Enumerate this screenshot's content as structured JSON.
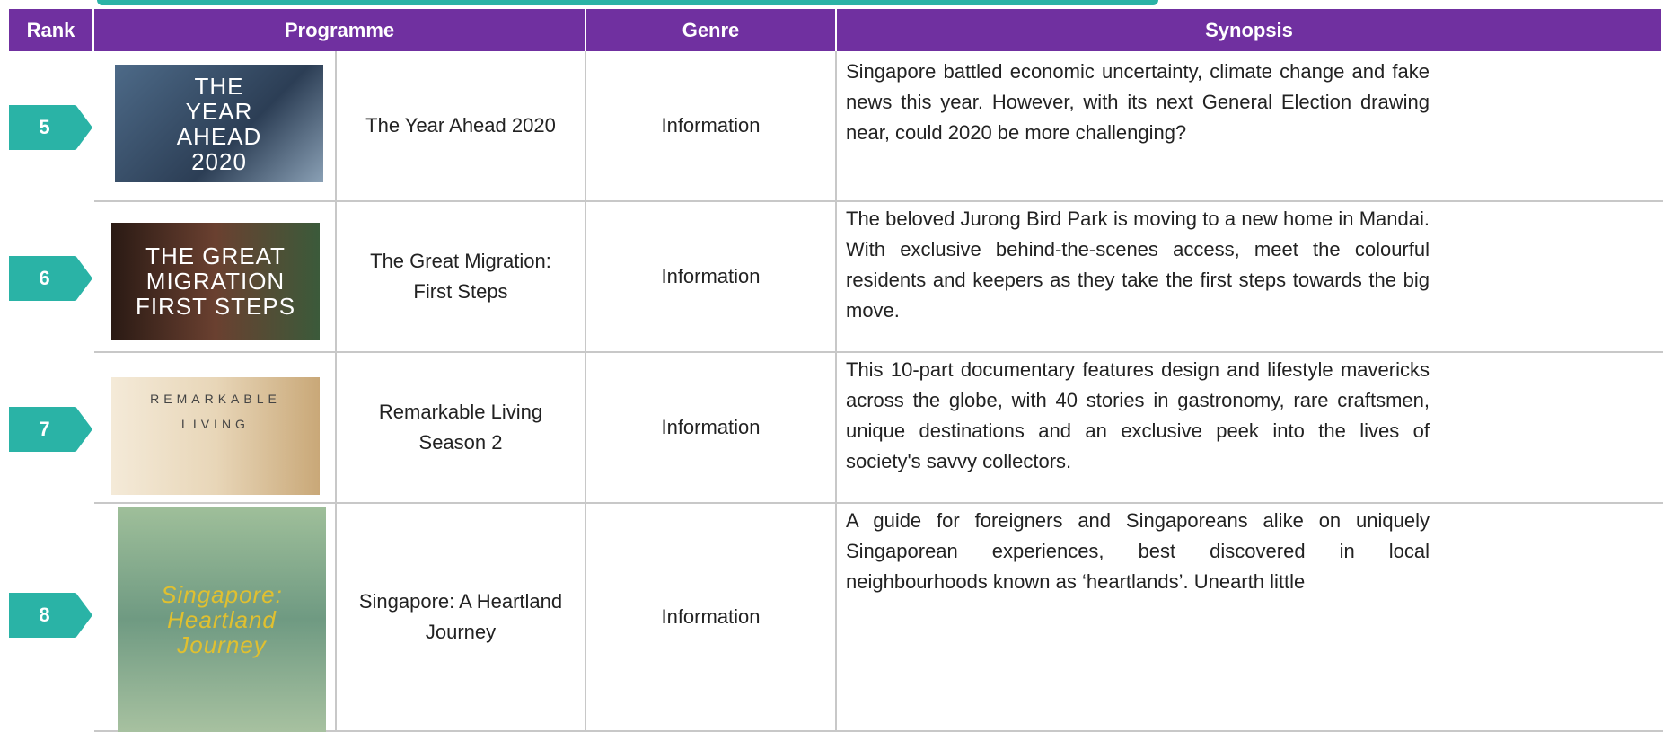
{
  "header": {
    "columns": [
      "Rank",
      "Programme",
      "Genre",
      "Synopsis"
    ]
  },
  "rows": [
    {
      "rank": "5",
      "image_text": [
        "THE",
        "YEAR",
        "AHEAD",
        "2020"
      ],
      "programme": "The Year Ahead 2020",
      "genre": "Information",
      "synopsis": "Singapore battled economic uncertainty, climate change and fake news this year. However, with its next General Election drawing near, could 2020 be more challenging?"
    },
    {
      "rank": "6",
      "image_text": [
        "THE GREAT",
        "MIGRATION",
        "FIRST STEPS"
      ],
      "programme": "The Great Migration: First Steps",
      "genre": "Information",
      "synopsis": "The beloved Jurong Bird Park is moving to a new home in Mandai. With exclusive behind-the-scenes access, meet the colourful residents and keepers as they take the first steps towards the big move."
    },
    {
      "rank": "7",
      "image_text": [
        "REMARKABLE",
        "LIVING"
      ],
      "programme": "Remarkable Living Season 2",
      "genre": "Information",
      "synopsis": "This 10-part documentary features design and lifestyle mavericks across the globe, with 40 stories in gastronomy, rare craftsmen, unique destinations and an exclusive peek into the lives of society's savvy collectors."
    },
    {
      "rank": "8",
      "image_text": [
        "Singapore:",
        "Heartland",
        "Journey"
      ],
      "programme": "Singapore: A Heartland Journey",
      "genre": "Information",
      "synopsis": "A guide for foreigners and Singaporeans alike on uniquely Singaporean experiences, best discovered in local neighbourhoods known as ‘heartlands’. Unearth little"
    }
  ]
}
